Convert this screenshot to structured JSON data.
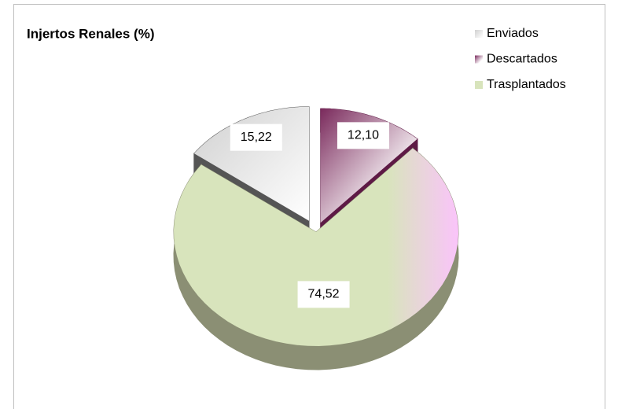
{
  "chart_data": {
    "type": "pie",
    "title": "Injertos Renales (%)",
    "categories": [
      "Enviados",
      "Descartados",
      "Trasplantados"
    ],
    "values": [
      15.22,
      12.1,
      74.52
    ],
    "value_labels": [
      "15,22",
      "12,10",
      "74,52"
    ],
    "colors": [
      "#e6e6e6",
      "#7a2a5c",
      "#d8e4bc"
    ],
    "legend": "top-right"
  }
}
